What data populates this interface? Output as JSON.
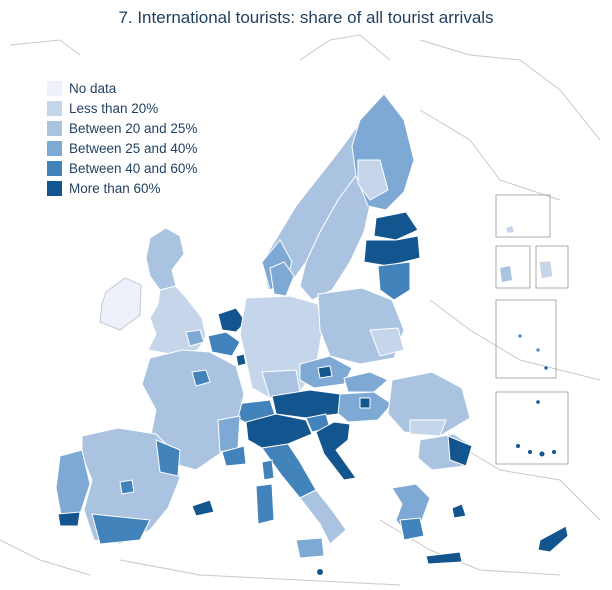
{
  "title": "7. International tourists: share of all tourist arrivals",
  "legend": {
    "items": [
      {
        "label": "No data",
        "color": "#eef1fa"
      },
      {
        "label": "Less than 20%",
        "color": "#c6d6ea"
      },
      {
        "label": "Between 20 and 25%",
        "color": "#a9c3e0"
      },
      {
        "label": "Between 25 and 40%",
        "color": "#7ea9d4"
      },
      {
        "label": "Between 40 and 60%",
        "color": "#4383bc"
      },
      {
        "label": "More than 60%",
        "color": "#13558f"
      }
    ]
  }
}
